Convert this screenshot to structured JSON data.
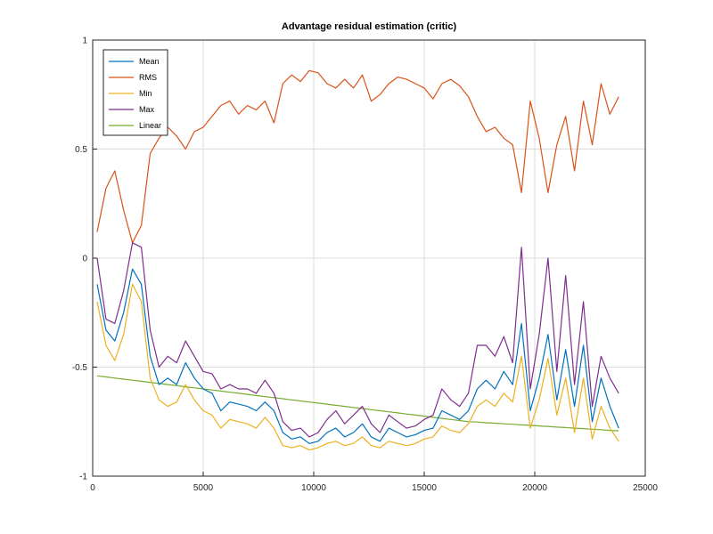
{
  "chart_data": {
    "type": "line",
    "title": "Advantage residual estimation (critic)",
    "xlabel": "",
    "ylabel": "",
    "xlim": [
      0,
      25000
    ],
    "ylim": [
      -1,
      1
    ],
    "xticks": [
      0,
      5000,
      10000,
      15000,
      20000,
      25000
    ],
    "xtick_labels": [
      "0",
      "5000",
      "10000",
      "15000",
      "20000",
      "25000"
    ],
    "yticks": [
      -1,
      -0.5,
      0,
      0.5,
      1
    ],
    "ytick_labels": [
      "-1",
      "-0.5",
      "0",
      "0.5",
      "1"
    ],
    "grid": true,
    "legend_position": "top-left",
    "x": [
      200,
      600,
      1000,
      1400,
      1800,
      2200,
      2600,
      3000,
      3400,
      3800,
      4200,
      4600,
      5000,
      5400,
      5800,
      6200,
      6600,
      7000,
      7400,
      7800,
      8200,
      8600,
      9000,
      9400,
      9800,
      10200,
      10600,
      11000,
      11400,
      11800,
      12200,
      12600,
      13000,
      13400,
      13800,
      14200,
      14600,
      15000,
      15400,
      15800,
      16200,
      16600,
      17000,
      17400,
      17800,
      18200,
      18600,
      19000,
      19400,
      19800,
      20200,
      20600,
      21000,
      21400,
      21800,
      22200,
      22600,
      23000,
      23400,
      23800
    ],
    "series": [
      {
        "name": "Mean",
        "color": "#0072BD",
        "values": [
          -0.12,
          -0.33,
          -0.38,
          -0.25,
          -0.05,
          -0.12,
          -0.45,
          -0.58,
          -0.55,
          -0.58,
          -0.48,
          -0.55,
          -0.6,
          -0.62,
          -0.7,
          -0.66,
          -0.67,
          -0.68,
          -0.7,
          -0.66,
          -0.7,
          -0.8,
          -0.83,
          -0.82,
          -0.85,
          -0.84,
          -0.8,
          -0.78,
          -0.82,
          -0.8,
          -0.76,
          -0.82,
          -0.84,
          -0.78,
          -0.8,
          -0.82,
          -0.81,
          -0.79,
          -0.78,
          -0.7,
          -0.72,
          -0.74,
          -0.7,
          -0.6,
          -0.56,
          -0.6,
          -0.52,
          -0.58,
          -0.3,
          -0.7,
          -0.55,
          -0.35,
          -0.65,
          -0.42,
          -0.68,
          -0.4,
          -0.75,
          -0.55,
          -0.68,
          -0.78
        ]
      },
      {
        "name": "RMS",
        "color": "#D95319",
        "values": [
          0.12,
          0.32,
          0.4,
          0.22,
          0.07,
          0.15,
          0.48,
          0.55,
          0.6,
          0.56,
          0.5,
          0.58,
          0.6,
          0.65,
          0.7,
          0.72,
          0.66,
          0.7,
          0.68,
          0.72,
          0.62,
          0.8,
          0.84,
          0.81,
          0.86,
          0.85,
          0.8,
          0.78,
          0.82,
          0.78,
          0.84,
          0.72,
          0.75,
          0.8,
          0.83,
          0.82,
          0.8,
          0.78,
          0.73,
          0.8,
          0.82,
          0.79,
          0.74,
          0.65,
          0.58,
          0.6,
          0.55,
          0.52,
          0.3,
          0.72,
          0.55,
          0.3,
          0.52,
          0.65,
          0.4,
          0.72,
          0.52,
          0.8,
          0.66,
          0.74
        ]
      },
      {
        "name": "Min",
        "color": "#EDB120",
        "values": [
          -0.2,
          -0.4,
          -0.47,
          -0.35,
          -0.12,
          -0.2,
          -0.55,
          -0.65,
          -0.68,
          -0.66,
          -0.58,
          -0.65,
          -0.7,
          -0.72,
          -0.78,
          -0.74,
          -0.75,
          -0.76,
          -0.78,
          -0.73,
          -0.78,
          -0.86,
          -0.87,
          -0.86,
          -0.88,
          -0.87,
          -0.85,
          -0.84,
          -0.86,
          -0.85,
          -0.82,
          -0.86,
          -0.87,
          -0.84,
          -0.85,
          -0.86,
          -0.85,
          -0.83,
          -0.82,
          -0.77,
          -0.79,
          -0.8,
          -0.76,
          -0.68,
          -0.65,
          -0.68,
          -0.62,
          -0.66,
          -0.45,
          -0.78,
          -0.65,
          -0.46,
          -0.72,
          -0.55,
          -0.8,
          -0.55,
          -0.83,
          -0.68,
          -0.78,
          -0.84
        ]
      },
      {
        "name": "Max",
        "color": "#7E2F8E",
        "values": [
          0.0,
          -0.28,
          -0.3,
          -0.15,
          0.07,
          0.05,
          -0.33,
          -0.5,
          -0.45,
          -0.48,
          -0.38,
          -0.45,
          -0.52,
          -0.53,
          -0.6,
          -0.58,
          -0.6,
          -0.6,
          -0.62,
          -0.56,
          -0.62,
          -0.75,
          -0.79,
          -0.78,
          -0.82,
          -0.8,
          -0.74,
          -0.7,
          -0.76,
          -0.72,
          -0.68,
          -0.76,
          -0.8,
          -0.72,
          -0.75,
          -0.78,
          -0.77,
          -0.74,
          -0.72,
          -0.6,
          -0.65,
          -0.68,
          -0.62,
          -0.4,
          -0.4,
          -0.45,
          -0.36,
          -0.48,
          0.05,
          -0.6,
          -0.35,
          0.0,
          -0.52,
          -0.08,
          -0.58,
          -0.2,
          -0.68,
          -0.45,
          -0.55,
          -0.62
        ]
      },
      {
        "name": "Linear",
        "color": "#77AC30",
        "values": [
          -0.54,
          -0.545,
          -0.55,
          -0.555,
          -0.56,
          -0.565,
          -0.57,
          -0.575,
          -0.58,
          -0.585,
          -0.59,
          -0.595,
          -0.6,
          -0.605,
          -0.61,
          -0.615,
          -0.62,
          -0.625,
          -0.63,
          -0.635,
          -0.64,
          -0.645,
          -0.65,
          -0.655,
          -0.66,
          -0.665,
          -0.67,
          -0.675,
          -0.68,
          -0.685,
          -0.69,
          -0.695,
          -0.7,
          -0.705,
          -0.71,
          -0.715,
          -0.72,
          -0.725,
          -0.73,
          -0.735,
          -0.74,
          -0.745,
          -0.75,
          -0.752,
          -0.755,
          -0.757,
          -0.76,
          -0.762,
          -0.765,
          -0.767,
          -0.77,
          -0.772,
          -0.775,
          -0.777,
          -0.78,
          -0.782,
          -0.785,
          -0.787,
          -0.79,
          -0.792
        ]
      }
    ]
  }
}
